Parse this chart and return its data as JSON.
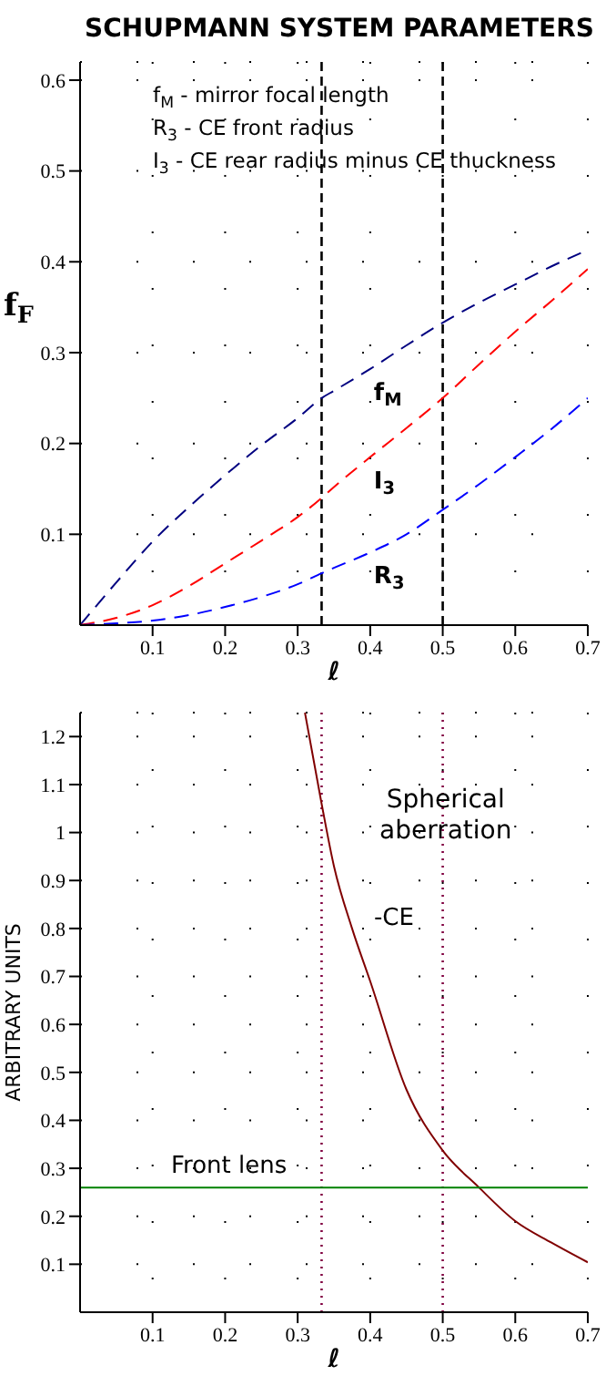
{
  "chart_data": [
    {
      "type": "line",
      "title": "SCHUPMANN SYSTEM PARAMETERS",
      "xlabel": "ℓ",
      "ylabel": "f$_{F}$",
      "annotations": [
        "f$_{M}$ - mirror focal length",
        "R$_{3}$ - CE front radius",
        "I$_{3}$ - CE rear radius minus CE thuckness"
      ],
      "x": [
        0,
        0.05,
        0.1,
        0.15,
        0.2,
        0.25,
        0.3,
        0.333,
        0.35,
        0.4,
        0.45,
        0.5,
        0.55,
        0.6,
        0.65,
        0.7
      ],
      "series": [
        {
          "name": "f$_{M}$",
          "color": "#000080",
          "line_style": "dashed",
          "values": [
            0,
            0.047,
            0.092,
            0.13,
            0.165,
            0.198,
            0.228,
            0.25,
            0.258,
            0.282,
            0.308,
            0.333,
            0.355,
            0.375,
            0.395,
            0.413
          ]
        },
        {
          "name": "I$_{3}$",
          "color": "#ff0000",
          "line_style": "dashed",
          "values": [
            0,
            0.008,
            0.022,
            0.043,
            0.068,
            0.093,
            0.119,
            0.14,
            0.152,
            0.185,
            0.217,
            0.25,
            0.287,
            0.323,
            0.357,
            0.392
          ]
        },
        {
          "name": "R$_{3}$",
          "color": "#0000ff",
          "line_style": "dashed",
          "values": [
            0,
            0.002,
            0.005,
            0.011,
            0.02,
            0.031,
            0.045,
            0.057,
            0.063,
            0.08,
            0.1,
            0.127,
            0.155,
            0.185,
            0.216,
            0.25
          ]
        }
      ],
      "xlim": [
        0,
        0.7
      ],
      "ylim": [
        0,
        0.62
      ],
      "xticks": [
        0.1,
        0.2,
        0.3,
        0.4,
        0.5,
        0.6,
        0.7
      ],
      "yticks": [
        0.1,
        0.2,
        0.3,
        0.4,
        0.5,
        0.6
      ],
      "ref_lines": [
        {
          "axis": "x",
          "value": 0.333,
          "color": "#000000",
          "line_style": "dashed"
        },
        {
          "axis": "x",
          "value": 0.5,
          "color": "#000000",
          "line_style": "dashed"
        }
      ],
      "grid": true,
      "marker": "none"
    },
    {
      "type": "line",
      "xlabel": "ℓ",
      "ylabel": "ARBITRARY UNITS",
      "annotations": [
        "Spherical aberration"
      ],
      "series": [
        {
          "name": "-CE",
          "color": "#800000",
          "line_style": "solid",
          "x": [
            0.31,
            0.333,
            0.35,
            0.375,
            0.4,
            0.45,
            0.5,
            0.55,
            0.6,
            0.65,
            0.7
          ],
          "values": [
            1.25,
            1.06,
            0.93,
            0.8,
            0.69,
            0.464,
            0.337,
            0.26,
            0.19,
            0.145,
            0.104
          ]
        },
        {
          "name": "Front lens",
          "color": "#008000",
          "line_style": "solid",
          "x": [
            0,
            0.7
          ],
          "values": [
            0.26,
            0.26
          ]
        }
      ],
      "xlim": [
        0,
        0.7
      ],
      "ylim": [
        0,
        1.25
      ],
      "xticks": [
        0.1,
        0.2,
        0.3,
        0.4,
        0.5,
        0.6,
        0.7
      ],
      "yticks": [
        0.1,
        0.2,
        0.3,
        0.4,
        0.5,
        0.6,
        0.7,
        0.8,
        0.9,
        1,
        1.1,
        1.2
      ],
      "ref_lines": [
        {
          "axis": "x",
          "value": 0.333,
          "color": "#800040",
          "line_style": "dotted"
        },
        {
          "axis": "x",
          "value": 0.5,
          "color": "#800040",
          "line_style": "dotted"
        }
      ],
      "grid": true,
      "marker": "none"
    }
  ]
}
